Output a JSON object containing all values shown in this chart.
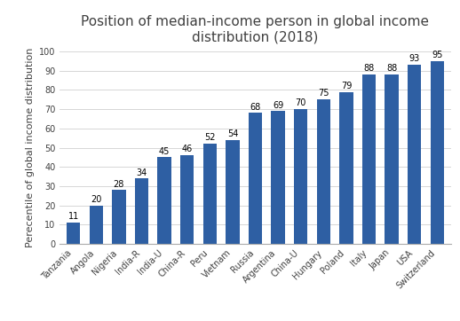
{
  "title": "Position of median-income person in global income\ndistribution (2018)",
  "ylabel": "Perecentile of global income distribution",
  "categories": [
    "Tanzania",
    "Angola",
    "Nigeria",
    "India-R",
    "India-U",
    "China-R",
    "Peru",
    "Vietnam",
    "Russia",
    "Argentina",
    "China-U",
    "Hungary",
    "Poland",
    "Italy",
    "Japan",
    "USA",
    "Switzerland"
  ],
  "values": [
    11,
    20,
    28,
    34,
    45,
    46,
    52,
    54,
    68,
    69,
    70,
    75,
    79,
    88,
    88,
    93,
    95
  ],
  "bar_color": "#2e5fa3",
  "ylim": [
    0,
    100
  ],
  "yticks": [
    0,
    10,
    20,
    30,
    40,
    50,
    60,
    70,
    80,
    90,
    100
  ],
  "title_fontsize": 11,
  "label_fontsize": 7,
  "ylabel_fontsize": 8,
  "value_label_fontsize": 7,
  "title_color": "#404040",
  "tick_color": "#404040",
  "background_color": "#ffffff",
  "grid_color": "#d0d0d0"
}
